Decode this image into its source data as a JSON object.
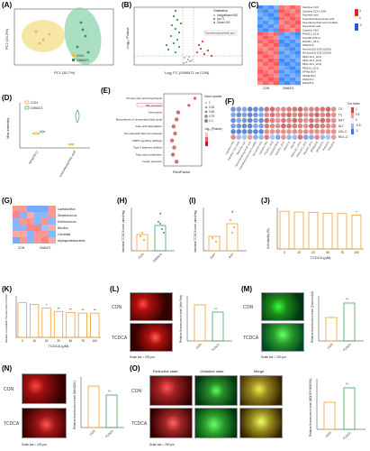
{
  "panels": {
    "A": {
      "label": "(A)",
      "xlabel": "PC1 (30.7%)",
      "ylabel": "PC2 (20.3%)",
      "legend": [
        "CON",
        "GW6471"
      ]
    },
    "B": {
      "label": "(B)",
      "xlabel": "Log₂ FC (GW6471 vs CON)",
      "ylabel": "-Log₁₀ PValue",
      "legend_title": "Statistics",
      "legend": [
        "Insignificant:932",
        "Up:71",
        "Down:100"
      ],
      "annot": [
        "Taurochenodeoxycholic acid"
      ]
    },
    "C": {
      "label": "(C)",
      "rows": [
        "Carnitine C4:0",
        "Carnitine C13:1-2OH",
        "Norcholic acid",
        "Taurochenodeoxycholic acid",
        "Taurodeoxycholic acid 3-sulfate",
        "Glycocholic acid",
        "Carnitine C8:0",
        "PG(18:1_16:0)",
        "Cer(d20:1/26:2)",
        "DG(18:1_18:1)",
        "FFA(22:3)",
        "HexCer(d22:2/24:1(2OH))",
        "HexCer(d22:2/25:1(2OH))",
        "PE(O-16:1_18:1)",
        "PE(O-18:1_20:4)",
        "PE(O-16:1_20:4)",
        "PE(16:0_18:1)",
        "SPH(d18:0)",
        "SPH(d18:1)",
        "FFA(16:1)",
        "FFA(18:2)"
      ],
      "groups": [
        "CON",
        "GW6471"
      ],
      "scale": [
        "3",
        "0",
        "-3"
      ]
    },
    "D": {
      "label": "(D)",
      "ylabel": "Max intensity",
      "legend": [
        "CON",
        "GW6471"
      ],
      "x": [
        "SPH(d18:1)",
        "Taurochenodeoxycholic acid"
      ]
    },
    "E": {
      "label": "(E)",
      "xlabel": "RichFactor",
      "terms": [
        "Primary bile acid biosynthesis",
        "Bile secretion",
        "Ferroptosis",
        "Biosynthesis of unsaturated fatty acids",
        "Fatty acid degradation",
        "Non-alcoholic fatty liver disease",
        "AMPK signaling pathway",
        "Type II diabetes mellitus",
        "Fatty acid metabolism",
        "Insulin secretion"
      ],
      "legend_count_title": "Gene number",
      "legend_counts": [
        "1",
        "0.25",
        "0.50",
        "0.75",
        "1.0"
      ],
      "legend_p_title": "-log₁₀(Pvalue)"
    },
    "F": {
      "label": "(F)",
      "rows": [
        "TG",
        "TC",
        "AST",
        "ALT",
        "LDL-C",
        "HDL-C"
      ],
      "legend_title": "Cor Index",
      "scale": [
        "1",
        "0.5",
        "0",
        "-0.5",
        "-1"
      ],
      "cols": [
        "Carnitine C4:0",
        "Carnitine C13:1-2OH",
        "Norcholic acid",
        "Taurochenodeoxycholic acid",
        "Taurodeoxycholic acid 3-sulfate",
        "Glycocholic acid",
        "Carnitine C8:0",
        "PG(18:1_16:0)",
        "Cer(d20:1/26:2)",
        "DG(18:1_18:1)",
        "FFA(22:3)",
        "HexCer",
        "PE(O-16:1_18:1)",
        "PE(O-18:1_20:4)",
        "PE(16:0_18:1)",
        "SPH(d18:0)",
        "SPH(d18:1)",
        "FFA(16:1)",
        "FFA(18:2)"
      ]
    },
    "G": {
      "label": "(G)",
      "rows": [
        "Lactobacillus",
        "Streptococcus",
        "Enterococcus",
        "Bacillus",
        "Clostridia",
        "Alphaproteobacteria"
      ],
      "groups": [
        "CON",
        "GW6471"
      ]
    },
    "H": {
      "label": "(H)",
      "ylabel": "Intestinal TCDCA level (nmol/mg)",
      "x": [
        "CON",
        "GW6471"
      ],
      "sig": "*"
    },
    "I": {
      "label": "(I)",
      "ylabel": "Intestinal TCDCA level (nmol/mg)",
      "x": [
        "Ctrl⁰⁰",
        "Rif⁰⁰"
      ],
      "sig": "*"
    },
    "J": {
      "label": "(J)",
      "ylabel": "Cell viability (%)",
      "xlabel": "TCDCA (μM)",
      "x": [
        "0",
        "10",
        "20",
        "50",
        "75",
        "100"
      ],
      "sig": "*"
    },
    "K": {
      "label": "(K)",
      "ylabel": "Relative intracellular TG level (fold of CON)",
      "xlabel": "TCDCA (μM)",
      "x": [
        "0",
        "10",
        "20",
        "30",
        "50",
        "75",
        "100"
      ],
      "sig": [
        "*",
        "**",
        "**",
        "**",
        "**"
      ]
    },
    "L": {
      "label": "(L)",
      "rows": [
        "CON",
        "TCDCA"
      ],
      "scale": "Scale bar = 200 μm",
      "ylabel": "Relative fluorescence level (Nile Red)",
      "x": [
        "CON",
        "TCDCA"
      ],
      "sig": "**"
    },
    "M": {
      "label": "(M)",
      "rows": [
        "CON",
        "TCDCA"
      ],
      "scale": "Scale bar = 200 μm",
      "ylabel": "Relative fluorescence level (Calcein AM)",
      "x": [
        "CON",
        "TCDCA"
      ],
      "sig": "**"
    },
    "N": {
      "label": "(N)",
      "rows": [
        "CON",
        "TCDCA"
      ],
      "scale": "Scale bar = 200 μm",
      "ylabel": "Relative fluorescence level (MitoSOX)",
      "x": [
        "CON",
        "TCDCA"
      ],
      "sig": "**"
    },
    "O": {
      "label": "(O)",
      "cols": [
        "Reductive state",
        "Oxidative state",
        "Merge"
      ],
      "rows": [
        "CON",
        "TCDCA"
      ],
      "scale": "Scale bar = 200 μm",
      "ylabel": "Relative fluorescence level (BODIPY581/591)",
      "x": [
        "CON",
        "TCDCA"
      ],
      "sig": "**"
    }
  },
  "colors": {
    "con": "#f0a030",
    "gw": "#3ba55c",
    "pink": "#e05a6a"
  }
}
